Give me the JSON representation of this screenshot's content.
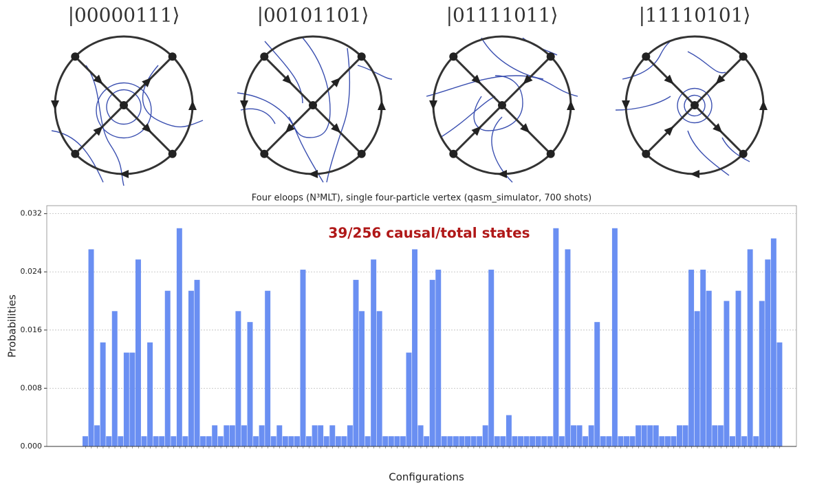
{
  "diagrams": [
    {
      "label": "|00000111⟩"
    },
    {
      "label": "|00101101⟩"
    },
    {
      "label": "|01111011⟩"
    },
    {
      "label": "|11110101⟩"
    }
  ],
  "chart_data": {
    "type": "bar",
    "title": "Four eloops (N³MLT), single four-particle vertex (qasm_simulator, 700 shots)",
    "annotation": "39/256 causal/total states",
    "xlabel": "Configurations",
    "ylabel": "Probabilities",
    "color": "#6a8ff2",
    "grid": true,
    "ylim": [
      0,
      0.0331
    ],
    "yticks": [
      {
        "value": 0,
        "label": "0.000"
      },
      {
        "value": 0.008,
        "label": "0.008"
      },
      {
        "value": 0.016,
        "label": "0.016"
      },
      {
        "value": 0.024,
        "label": "0.024"
      },
      {
        "value": 0.032,
        "label": "0.032"
      }
    ],
    "values": [
      0.0014,
      0.0271,
      0.0029,
      0.0143,
      0.0014,
      0.0186,
      0.0014,
      0.0129,
      0.0129,
      0.0257,
      0.0014,
      0.0143,
      0.0014,
      0.0014,
      0.0214,
      0.0014,
      0.03,
      0.0014,
      0.0214,
      0.0229,
      0.0014,
      0.0014,
      0.0029,
      0.0014,
      0.0029,
      0.0029,
      0.0186,
      0.0029,
      0.0171,
      0.0014,
      0.0029,
      0.0214,
      0.0014,
      0.0029,
      0.0014,
      0.0014,
      0.0014,
      0.0243,
      0.0014,
      0.0029,
      0.0029,
      0.0014,
      0.0029,
      0.0014,
      0.0014,
      0.0029,
      0.0229,
      0.0186,
      0.0014,
      0.0257,
      0.0186,
      0.0014,
      0.0014,
      0.0014,
      0.0014,
      0.0129,
      0.0271,
      0.0029,
      0.0014,
      0.0229,
      0.0243,
      0.0014,
      0.0014,
      0.0014,
      0.0014,
      0.0014,
      0.0014,
      0.0014,
      0.0029,
      0.0243,
      0.0014,
      0.0014,
      0.0043,
      0.0014,
      0.0014,
      0.0014,
      0.0014,
      0.0014,
      0.0014,
      0.0014,
      0.03,
      0.0014,
      0.0271,
      0.0029,
      0.0029,
      0.0014,
      0.0029,
      0.0171,
      0.0014,
      0.0014,
      0.03,
      0.0014,
      0.0014,
      0.0014,
      0.0029,
      0.0029,
      0.0029,
      0.0029,
      0.0014,
      0.0014,
      0.0014,
      0.0029,
      0.0029,
      0.0243,
      0.0186,
      0.0243,
      0.0214,
      0.0029,
      0.0029,
      0.02,
      0.0014,
      0.0214,
      0.0014,
      0.0271,
      0.0014,
      0.02,
      0.0257,
      0.0286,
      0.0143
    ]
  }
}
